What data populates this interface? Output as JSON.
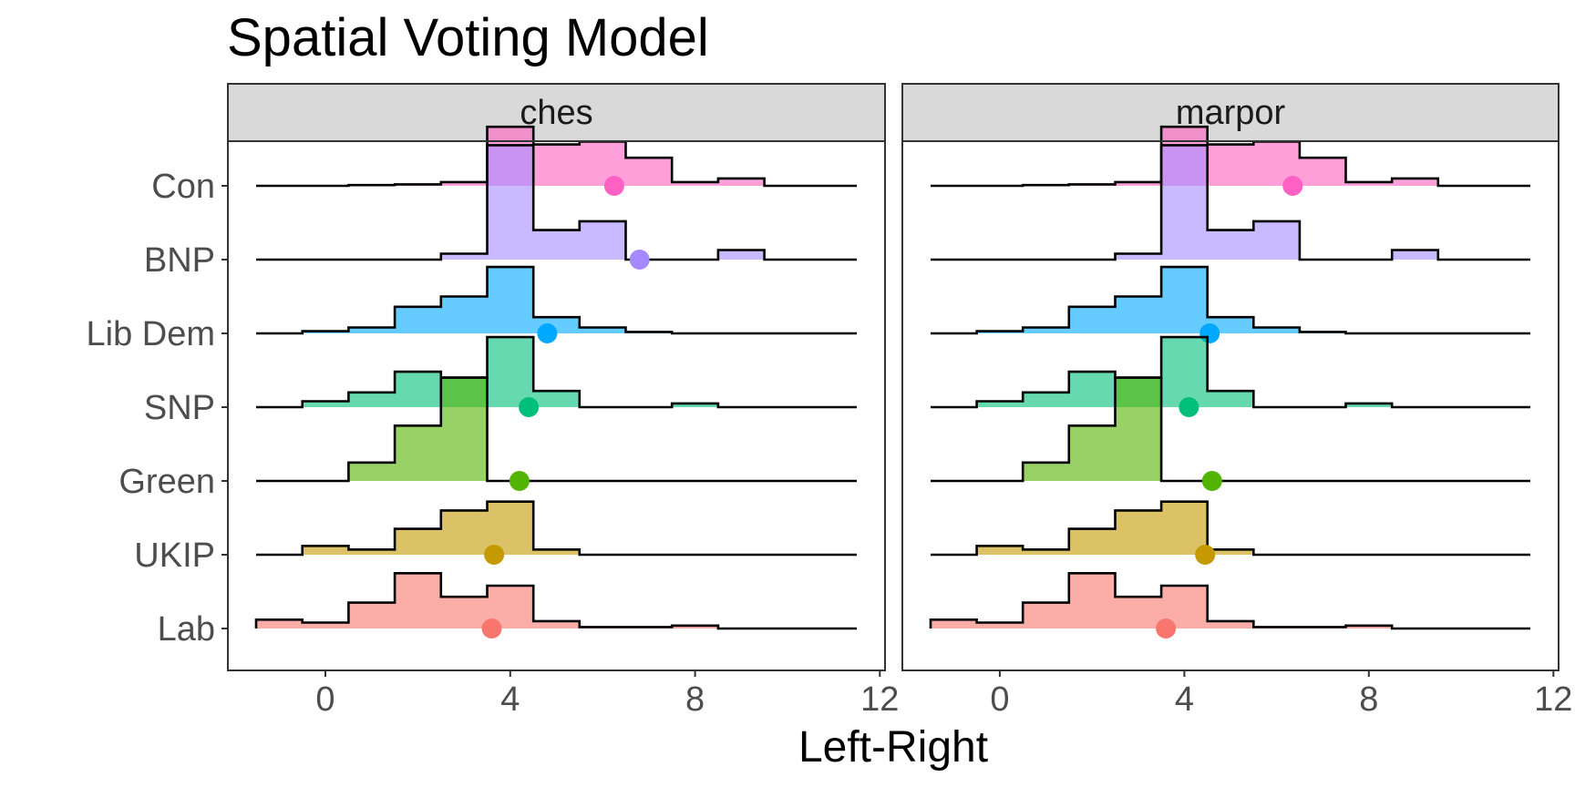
{
  "chart_data": {
    "type": "ridgeline-histogram",
    "title": "Spatial Voting Model",
    "xlabel": "Left-Right",
    "ylabel": "",
    "xlim": [
      -1.5,
      11.5
    ],
    "x_ticks": [
      0,
      4,
      8,
      12
    ],
    "grid": false,
    "bin_edges": [
      -1.5,
      -0.5,
      0.5,
      1.5,
      2.5,
      3.5,
      4.5,
      5.5,
      6.5,
      7.5,
      8.5,
      9.5,
      10.5,
      11.5
    ],
    "parties": [
      {
        "name": "Con",
        "color": "#FF61C3"
      },
      {
        "name": "BNP",
        "color": "#A58AFF"
      },
      {
        "name": "Lib Dem",
        "color": "#00A9FF"
      },
      {
        "name": "SNP",
        "color": "#00BF7D"
      },
      {
        "name": "Green",
        "color": "#53B400"
      },
      {
        "name": "UKIP",
        "color": "#C49A00"
      },
      {
        "name": "Lab",
        "color": "#F8766D"
      }
    ],
    "panels": [
      {
        "label": "ches",
        "series": [
          {
            "name": "Con",
            "mean": 6.25,
            "heights": [
              0,
              0,
              0.01,
              0.02,
              0.05,
              0.8,
              0.56,
              0.6,
              0.38,
              0.05,
              0.1,
              0,
              0
            ]
          },
          {
            "name": "BNP",
            "mean": 6.8,
            "heights": [
              0,
              0,
              0,
              0,
              0.08,
              1.55,
              0.4,
              0.52,
              0,
              0,
              0.13,
              0,
              0
            ]
          },
          {
            "name": "Lib Dem",
            "mean": 4.8,
            "heights": [
              0,
              0.03,
              0.08,
              0.36,
              0.5,
              0.9,
              0.22,
              0.08,
              0.02,
              0,
              0,
              0,
              0
            ]
          },
          {
            "name": "SNP",
            "mean": 4.4,
            "heights": [
              0,
              0.08,
              0.2,
              0.48,
              0.4,
              0.95,
              0.22,
              0,
              0,
              0.05,
              0,
              0,
              0
            ]
          },
          {
            "name": "Green",
            "mean": 4.2,
            "heights": [
              0,
              0,
              0.25,
              0.75,
              1.4,
              0,
              0,
              0,
              0,
              0,
              0,
              0,
              0
            ]
          },
          {
            "name": "UKIP",
            "mean": 3.65,
            "heights": [
              0,
              0.12,
              0.07,
              0.35,
              0.6,
              0.72,
              0.07,
              0,
              0,
              0,
              0,
              0,
              0
            ]
          },
          {
            "name": "Lab",
            "mean": 3.6,
            "heights": [
              0.12,
              0.08,
              0.35,
              0.75,
              0.43,
              0.58,
              0.1,
              0.02,
              0.02,
              0.04,
              0,
              0,
              0
            ]
          }
        ]
      },
      {
        "label": "marpor",
        "series": [
          {
            "name": "Con",
            "mean": 6.35,
            "heights": [
              0,
              0,
              0.01,
              0.02,
              0.05,
              0.8,
              0.56,
              0.6,
              0.38,
              0.05,
              0.1,
              0,
              0
            ]
          },
          {
            "name": "BNP",
            "mean": null,
            "heights": [
              0,
              0,
              0,
              0,
              0.08,
              1.55,
              0.4,
              0.52,
              0,
              0,
              0.13,
              0,
              0
            ]
          },
          {
            "name": "Lib Dem",
            "mean": 4.55,
            "heights": [
              0,
              0.03,
              0.08,
              0.36,
              0.5,
              0.9,
              0.22,
              0.08,
              0.02,
              0,
              0,
              0,
              0
            ]
          },
          {
            "name": "SNP",
            "mean": 4.1,
            "heights": [
              0,
              0.08,
              0.2,
              0.48,
              0.4,
              0.95,
              0.22,
              0,
              0,
              0.05,
              0,
              0,
              0
            ]
          },
          {
            "name": "Green",
            "mean": 4.6,
            "heights": [
              0,
              0,
              0.25,
              0.75,
              1.4,
              0,
              0,
              0,
              0,
              0,
              0,
              0,
              0
            ]
          },
          {
            "name": "UKIP",
            "mean": 4.45,
            "heights": [
              0,
              0.12,
              0.07,
              0.35,
              0.6,
              0.72,
              0.07,
              0,
              0,
              0,
              0,
              0,
              0
            ]
          },
          {
            "name": "Lab",
            "mean": 3.6,
            "heights": [
              0.12,
              0.08,
              0.35,
              0.75,
              0.43,
              0.58,
              0.1,
              0.02,
              0.02,
              0.04,
              0,
              0,
              0
            ]
          }
        ]
      }
    ]
  }
}
